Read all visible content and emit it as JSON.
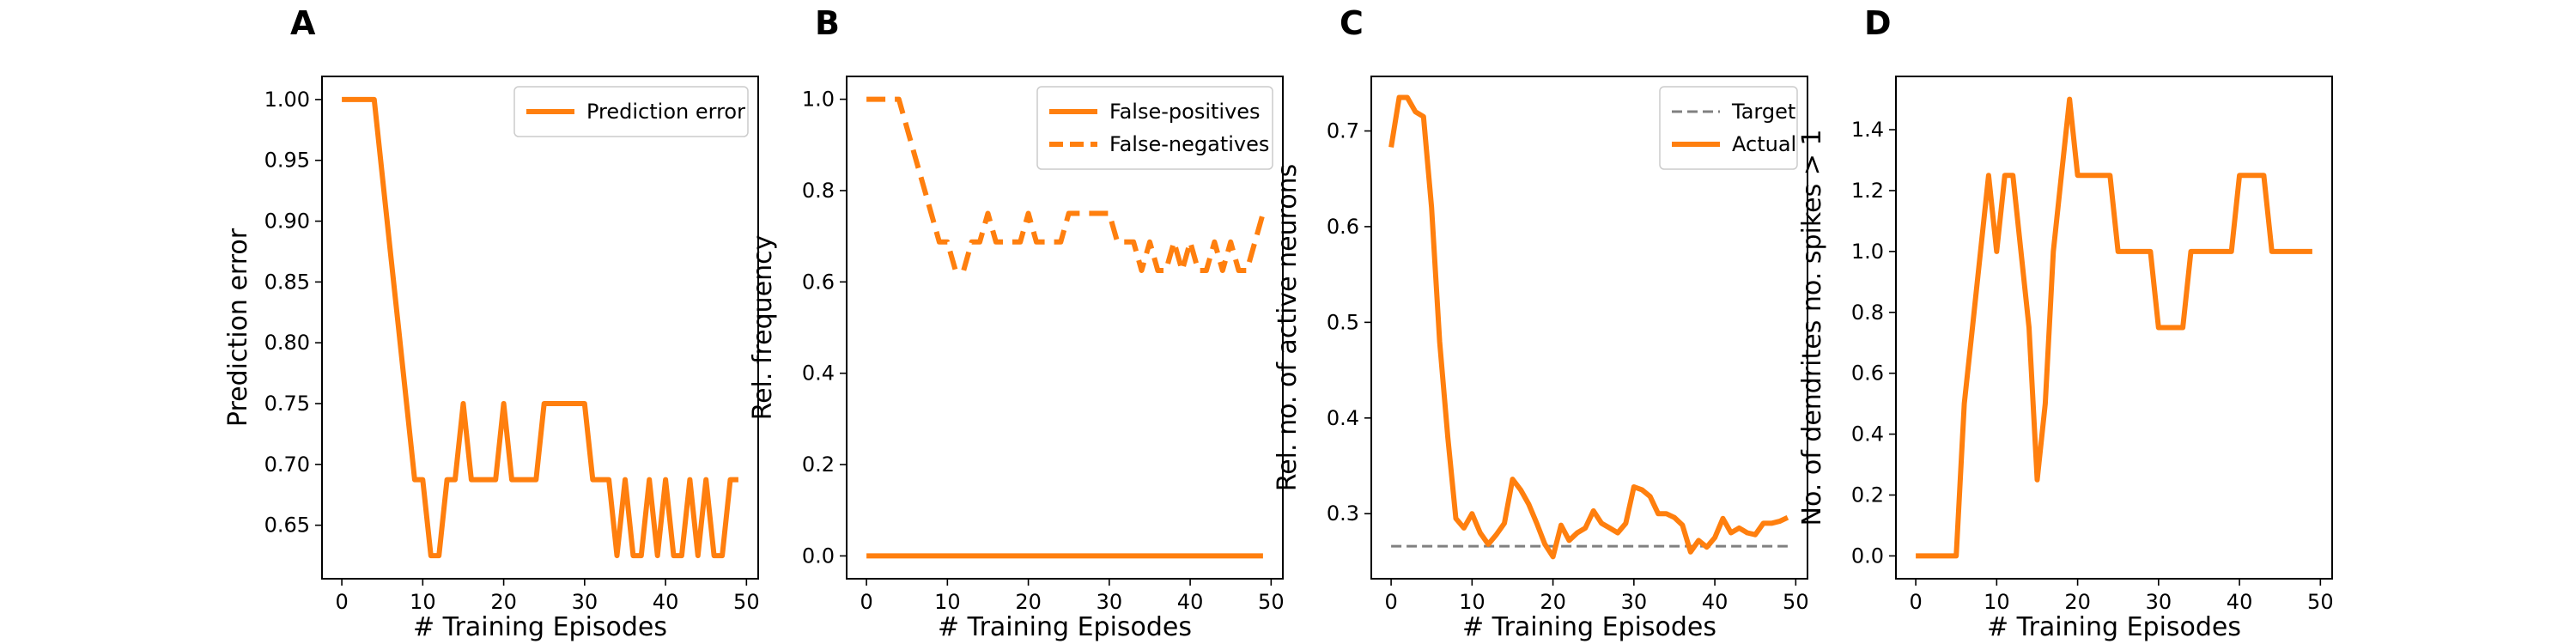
{
  "colors": {
    "series": "#ff7f0e",
    "target": "#808080",
    "frame": "#000000"
  },
  "x_axis_label": "# Training Episodes",
  "chart_data": [
    {
      "type": "line",
      "panel_label": "A",
      "xlabel": "# Training Episodes",
      "ylabel": "Prediction error",
      "xlim": [
        -2.45,
        51.45
      ],
      "ylim": [
        0.606,
        1.019
      ],
      "xticks": [
        0,
        10,
        20,
        30,
        40,
        50
      ],
      "yticks": [
        0.65,
        0.7,
        0.75,
        0.8,
        0.85,
        0.9,
        0.95,
        1.0
      ],
      "ytick_labels": [
        "0.65",
        "0.70",
        "0.75",
        "0.80",
        "0.85",
        "0.90",
        "0.95",
        "1.00"
      ],
      "grid": false,
      "legend_placement": "upper right",
      "series": [
        {
          "name": "Prediction error",
          "style": "solid",
          "x": [
            0,
            1,
            2,
            3,
            4,
            5,
            6,
            7,
            8,
            9,
            10,
            11,
            12,
            13,
            14,
            15,
            16,
            17,
            18,
            19,
            20,
            21,
            22,
            23,
            24,
            25,
            26,
            27,
            28,
            29,
            30,
            31,
            32,
            33,
            34,
            35,
            36,
            37,
            38,
            39,
            40,
            41,
            42,
            43,
            44,
            45,
            46,
            47,
            48,
            49
          ],
          "values": [
            1.0,
            1.0,
            1.0,
            1.0,
            1.0,
            0.9375,
            0.875,
            0.8125,
            0.75,
            0.6875,
            0.6875,
            0.625,
            0.625,
            0.6875,
            0.6875,
            0.75,
            0.6875,
            0.6875,
            0.6875,
            0.6875,
            0.75,
            0.6875,
            0.6875,
            0.6875,
            0.6875,
            0.75,
            0.75,
            0.75,
            0.75,
            0.75,
            0.75,
            0.6875,
            0.6875,
            0.6875,
            0.625,
            0.6875,
            0.625,
            0.625,
            0.6875,
            0.625,
            0.6875,
            0.625,
            0.625,
            0.6875,
            0.625,
            0.6875,
            0.625,
            0.625,
            0.6875,
            0.6875
          ]
        }
      ]
    },
    {
      "type": "line",
      "panel_label": "B",
      "xlabel": "# Training Episodes",
      "ylabel": "Rel. frequency",
      "xlim": [
        -2.45,
        51.45
      ],
      "ylim": [
        -0.05,
        1.05
      ],
      "xticks": [
        0,
        10,
        20,
        30,
        40,
        50
      ],
      "yticks": [
        0.0,
        0.2,
        0.4,
        0.6,
        0.8,
        1.0
      ],
      "ytick_labels": [
        "0.0",
        "0.2",
        "0.4",
        "0.6",
        "0.8",
        "1.0"
      ],
      "grid": false,
      "legend_placement": "upper right",
      "series": [
        {
          "name": "False-positives",
          "style": "solid",
          "x": [
            0,
            49
          ],
          "values": [
            0.0,
            0.0
          ]
        },
        {
          "name": "False-negatives",
          "style": "dashed",
          "x": [
            0,
            1,
            2,
            3,
            4,
            5,
            6,
            7,
            8,
            9,
            10,
            11,
            12,
            13,
            14,
            15,
            16,
            17,
            18,
            19,
            20,
            21,
            22,
            23,
            24,
            25,
            26,
            27,
            28,
            29,
            30,
            31,
            32,
            33,
            34,
            35,
            36,
            37,
            38,
            39,
            40,
            41,
            42,
            43,
            44,
            45,
            46,
            47,
            48,
            49
          ],
          "values": [
            1.0,
            1.0,
            1.0,
            1.0,
            1.0,
            0.9375,
            0.875,
            0.8125,
            0.75,
            0.6875,
            0.6875,
            0.625,
            0.625,
            0.6875,
            0.6875,
            0.75,
            0.6875,
            0.6875,
            0.6875,
            0.6875,
            0.75,
            0.6875,
            0.6875,
            0.6875,
            0.6875,
            0.75,
            0.75,
            0.75,
            0.75,
            0.75,
            0.75,
            0.6875,
            0.6875,
            0.6875,
            0.625,
            0.6875,
            0.625,
            0.625,
            0.6875,
            0.625,
            0.6875,
            0.625,
            0.625,
            0.6875,
            0.625,
            0.6875,
            0.625,
            0.625,
            0.6875,
            0.75
          ]
        }
      ]
    },
    {
      "type": "line",
      "panel_label": "C",
      "xlabel": "# Training Episodes",
      "ylabel": "Rel. no. of active neurons",
      "xlim": [
        -2.45,
        51.45
      ],
      "ylim": [
        0.232,
        0.757
      ],
      "xticks": [
        0,
        10,
        20,
        30,
        40,
        50
      ],
      "yticks": [
        0.3,
        0.4,
        0.5,
        0.6,
        0.7
      ],
      "ytick_labels": [
        "0.3",
        "0.4",
        "0.5",
        "0.6",
        "0.7"
      ],
      "grid": false,
      "legend_placement": "upper right",
      "series": [
        {
          "name": "Target",
          "style": "dashed",
          "x": [
            0,
            49
          ],
          "values": [
            0.266,
            0.266
          ]
        },
        {
          "name": "Actual",
          "style": "solid",
          "x": [
            0,
            1,
            2,
            3,
            4,
            5,
            6,
            7,
            8,
            9,
            10,
            11,
            12,
            13,
            14,
            15,
            16,
            17,
            18,
            19,
            20,
            21,
            22,
            23,
            24,
            25,
            26,
            27,
            28,
            29,
            30,
            31,
            32,
            33,
            34,
            35,
            36,
            37,
            38,
            39,
            40,
            41,
            42,
            43,
            44,
            45,
            46,
            47,
            48,
            49
          ],
          "values": [
            0.683,
            0.735,
            0.735,
            0.72,
            0.715,
            0.62,
            0.48,
            0.38,
            0.295,
            0.285,
            0.3,
            0.28,
            0.268,
            0.278,
            0.29,
            0.336,
            0.325,
            0.31,
            0.29,
            0.268,
            0.255,
            0.288,
            0.272,
            0.28,
            0.285,
            0.303,
            0.29,
            0.285,
            0.28,
            0.29,
            0.328,
            0.325,
            0.318,
            0.3,
            0.3,
            0.296,
            0.288,
            0.26,
            0.272,
            0.265,
            0.275,
            0.295,
            0.28,
            0.285,
            0.28,
            0.278,
            0.29,
            0.29,
            0.292,
            0.296
          ]
        }
      ]
    },
    {
      "type": "line",
      "panel_label": "D",
      "xlabel": "# Training Episodes",
      "ylabel": "No. of dendrites no. spikes > 1",
      "xlim": [
        -2.45,
        51.45
      ],
      "ylim": [
        -0.075,
        1.575
      ],
      "xticks": [
        0,
        10,
        20,
        30,
        40,
        50
      ],
      "yticks": [
        0.0,
        0.2,
        0.4,
        0.6,
        0.8,
        1.0,
        1.2,
        1.4
      ],
      "ytick_labels": [
        "0.0",
        "0.2",
        "0.4",
        "0.6",
        "0.8",
        "1.0",
        "1.2",
        "1.4"
      ],
      "grid": false,
      "legend_placement": "none",
      "series": [
        {
          "name": "",
          "style": "solid",
          "x": [
            0,
            1,
            2,
            3,
            4,
            5,
            6,
            7,
            8,
            9,
            10,
            11,
            12,
            13,
            14,
            15,
            16,
            17,
            18,
            19,
            20,
            21,
            22,
            23,
            24,
            25,
            26,
            27,
            28,
            29,
            30,
            31,
            32,
            33,
            34,
            35,
            36,
            37,
            38,
            39,
            40,
            41,
            42,
            43,
            44,
            45,
            46,
            47,
            48,
            49
          ],
          "values": [
            0,
            0,
            0,
            0,
            0,
            0,
            0.5,
            0.75,
            1.0,
            1.25,
            1.0,
            1.25,
            1.25,
            1.0,
            0.75,
            0.25,
            0.5,
            1.0,
            1.25,
            1.5,
            1.25,
            1.25,
            1.25,
            1.25,
            1.25,
            1.0,
            1.0,
            1.0,
            1.0,
            1.0,
            0.75,
            0.75,
            0.75,
            0.75,
            1.0,
            1.0,
            1.0,
            1.0,
            1.0,
            1.0,
            1.25,
            1.25,
            1.25,
            1.25,
            1.0,
            1.0,
            1.0,
            1.0,
            1.0,
            1.0
          ]
        }
      ]
    }
  ]
}
